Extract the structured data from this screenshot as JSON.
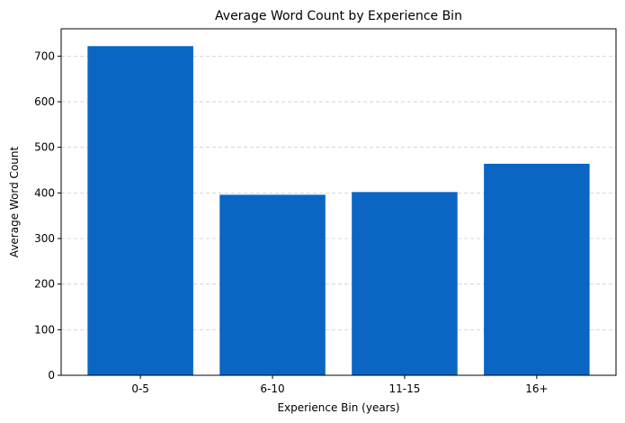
{
  "chart_data": {
    "type": "bar",
    "title": "Average Word Count by Experience Bin",
    "xlabel": "Experience Bin (years)",
    "ylabel": "Average Word Count",
    "categories": [
      "0-5",
      "6-10",
      "11-15",
      "16+"
    ],
    "values": [
      722,
      396,
      402,
      464
    ],
    "ylim": [
      0,
      760
    ],
    "yticks": [
      0,
      100,
      200,
      300,
      400,
      500,
      600,
      700
    ],
    "grid": true,
    "bar_color": "#0b66c3",
    "grid_color": "#cccccc"
  }
}
